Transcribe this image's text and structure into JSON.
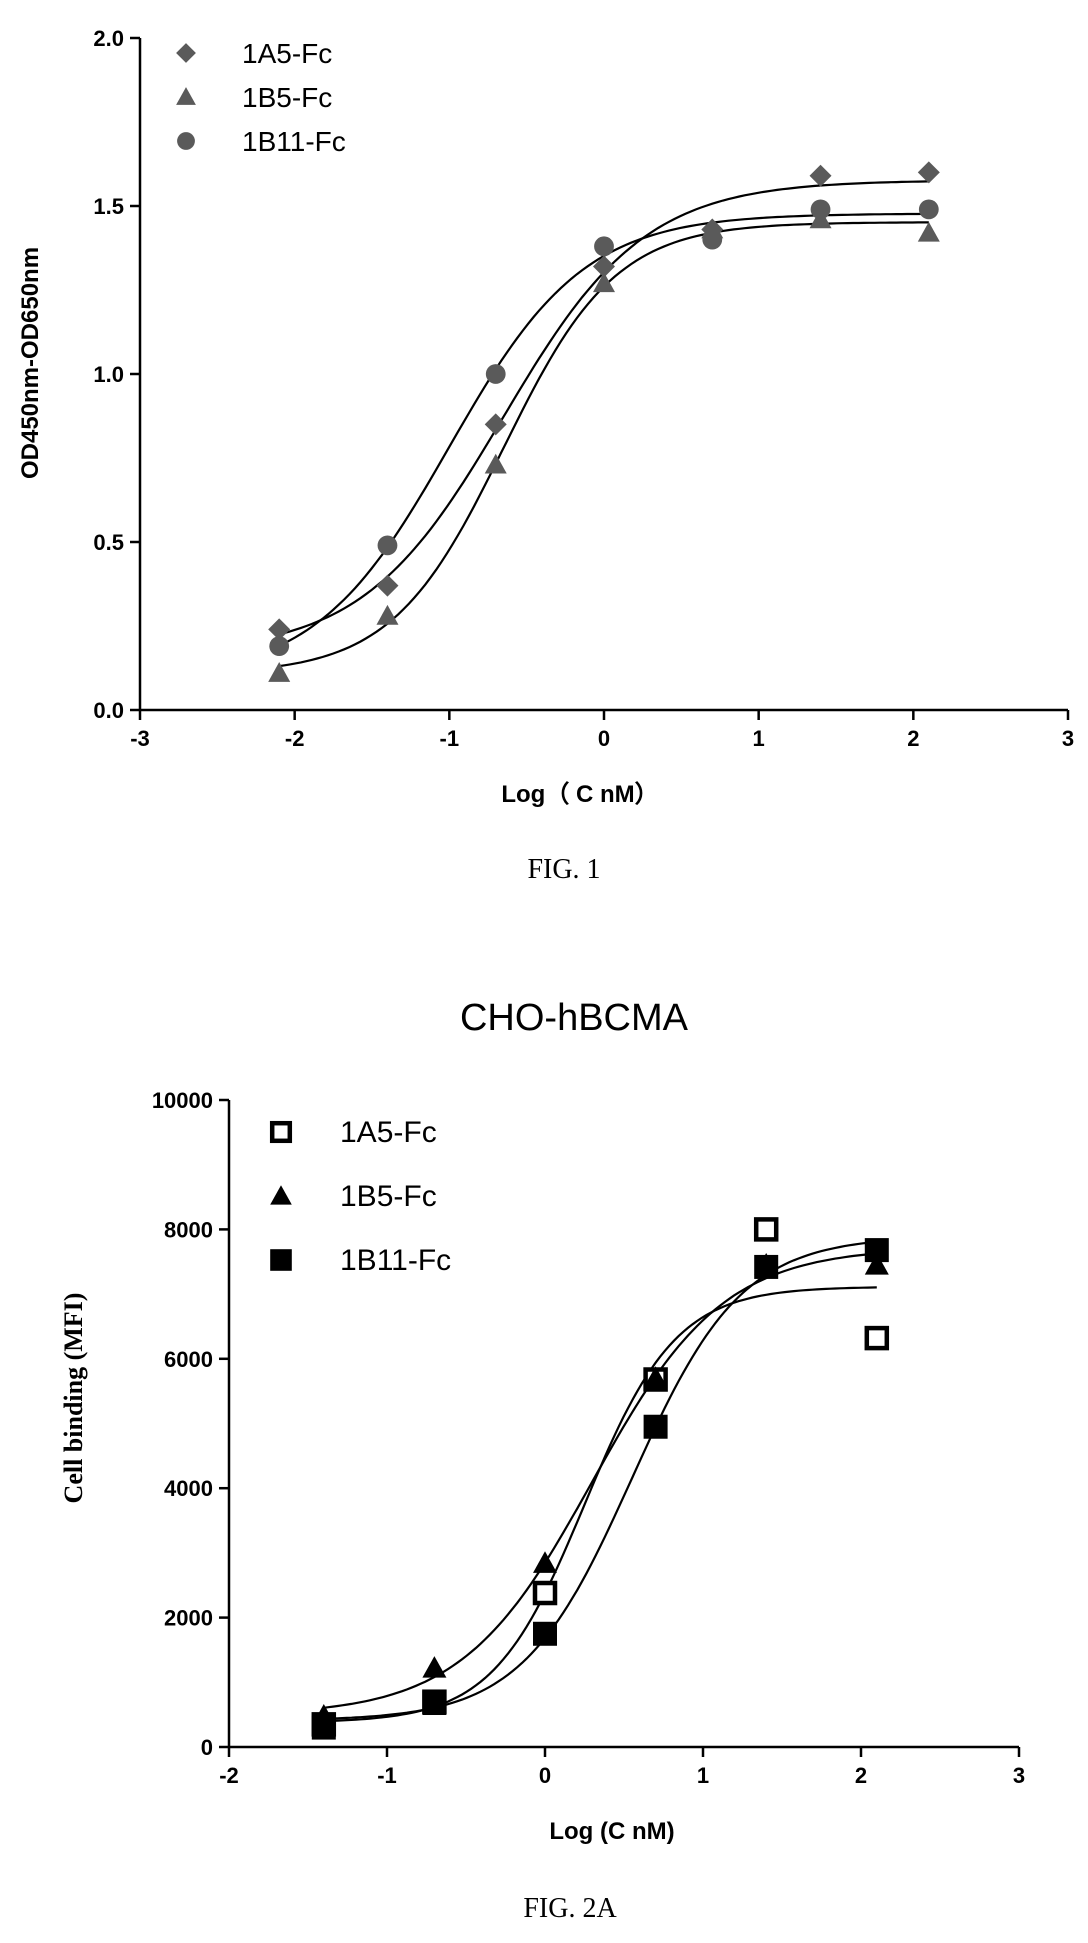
{
  "figures": [
    {
      "caption": "FIG. 1"
    },
    {
      "caption": "FIG. 2A"
    }
  ],
  "chart_data": [
    {
      "type": "scatter",
      "title": "",
      "xlabel": "Log（ C nM）",
      "ylabel": "OD450nm-OD650nm",
      "xlim": [
        -3,
        3
      ],
      "ylim": [
        0,
        2.0
      ],
      "xticks": [
        "-3",
        "-2",
        "-1",
        "0",
        "1",
        "2",
        "3"
      ],
      "yticks": [
        "0.0",
        "0.5",
        "1.0",
        "1.5",
        "2.0"
      ],
      "legend_position": "top-left",
      "fit_curves": true,
      "series": [
        {
          "name": "1A5-Fc",
          "marker": "diamond-filled",
          "color": "#5a5a5a",
          "x": [
            -2.1,
            -1.4,
            -0.7,
            0.0,
            0.7,
            1.4,
            2.1
          ],
          "y": [
            0.24,
            0.37,
            0.85,
            1.32,
            1.43,
            1.59,
            1.6
          ]
        },
        {
          "name": "1B5-Fc",
          "marker": "triangle-filled",
          "color": "#5a5a5a",
          "x": [
            -2.1,
            -1.4,
            -0.7,
            0.0,
            0.7,
            1.4,
            2.1
          ],
          "y": [
            0.11,
            0.28,
            0.73,
            1.27,
            1.43,
            1.46,
            1.42
          ]
        },
        {
          "name": "1B11-Fc",
          "marker": "circle-filled",
          "color": "#5a5a5a",
          "x": [
            -2.1,
            -1.4,
            -0.7,
            0.0,
            0.7,
            1.4,
            2.1
          ],
          "y": [
            0.19,
            0.49,
            1.0,
            1.38,
            1.4,
            1.49,
            1.49
          ]
        }
      ]
    },
    {
      "type": "scatter",
      "title": "CHO-hBCMA",
      "xlabel": "Log (C nM)",
      "ylabel": "Cell binding (MFI)",
      "xlim": [
        -2,
        3
      ],
      "ylim": [
        0,
        10000
      ],
      "xticks": [
        "-2",
        "-1",
        "0",
        "1",
        "2",
        "3"
      ],
      "yticks": [
        "0",
        "2000",
        "4000",
        "6000",
        "8000",
        "10000"
      ],
      "legend_position": "top-left",
      "fit_curves": true,
      "series": [
        {
          "name": "1A5-Fc",
          "marker": "square-open",
          "color": "#000000",
          "x": [
            -1.4,
            -0.7,
            0.0,
            0.7,
            1.4,
            2.1
          ],
          "y": [
            350,
            700,
            2380,
            5680,
            8000,
            6320
          ]
        },
        {
          "name": "1B5-Fc",
          "marker": "triangle-filled",
          "color": "#000000",
          "x": [
            -1.4,
            -0.7,
            0.0,
            0.7,
            1.4,
            2.1
          ],
          "y": [
            480,
            1220,
            2840,
            5700,
            7450,
            7450
          ]
        },
        {
          "name": "1B11-Fc",
          "marker": "square-filled",
          "color": "#000000",
          "x": [
            -1.4,
            -0.7,
            0.0,
            0.7,
            1.4,
            2.1
          ],
          "y": [
            300,
            680,
            1750,
            4950,
            7420,
            7680
          ]
        }
      ]
    }
  ]
}
